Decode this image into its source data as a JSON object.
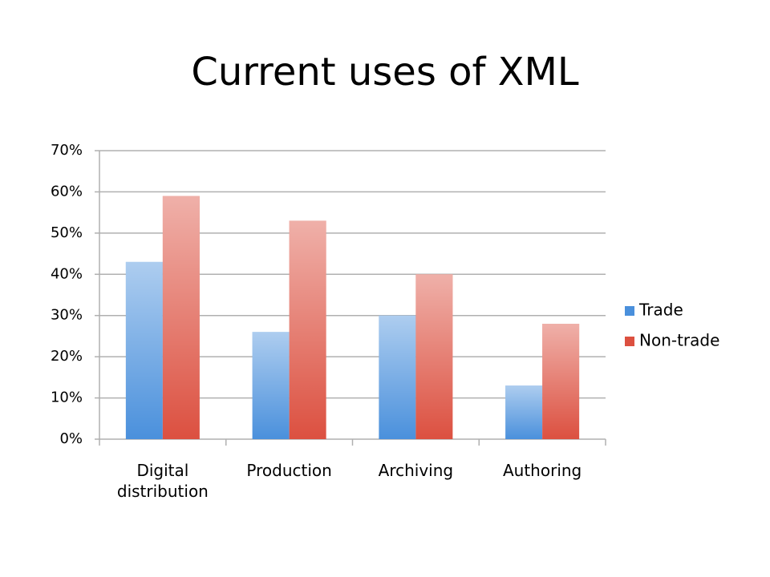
{
  "chart_data": {
    "type": "bar",
    "title": "Current uses of XML",
    "categories": [
      "Digital distribution",
      "Production",
      "Archiving",
      "Authoring"
    ],
    "series": [
      {
        "name": "Trade",
        "color": "#4a90dc",
        "values": [
          43,
          26,
          30,
          13
        ]
      },
      {
        "name": "Non-trade",
        "color": "#dc5040",
        "values": [
          59,
          53,
          40,
          28
        ]
      }
    ],
    "ylim": [
      0,
      70
    ],
    "yticks": [
      {
        "value": 0,
        "label": "0%"
      },
      {
        "value": 10,
        "label": "10%"
      },
      {
        "value": 20,
        "label": "20%"
      },
      {
        "value": 30,
        "label": "30%"
      },
      {
        "value": 40,
        "label": "40%"
      },
      {
        "value": 50,
        "label": "50%"
      },
      {
        "value": 60,
        "label": "60%"
      },
      {
        "value": 70,
        "label": "70%"
      }
    ],
    "grid": true,
    "legend": "right"
  }
}
